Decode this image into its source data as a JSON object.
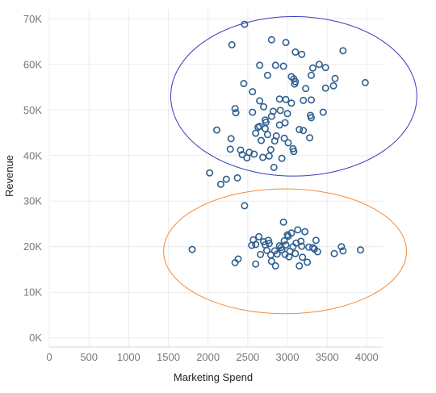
{
  "chart_data": {
    "type": "scatter",
    "xlabel": "Marketing Spend",
    "ylabel": "Revenue",
    "xlim": [
      0,
      4200
    ],
    "ylim": [
      -2000,
      72000
    ],
    "x_ticks": [
      0,
      500,
      1000,
      1500,
      2000,
      2500,
      3000,
      3500,
      4000
    ],
    "y_ticks": [
      0,
      10000,
      20000,
      30000,
      40000,
      50000,
      60000,
      70000
    ],
    "y_tick_labels": [
      "0K",
      "10K",
      "20K",
      "30K",
      "40K",
      "50K",
      "60K",
      "70K"
    ],
    "grid": true,
    "marker_color": "#2f5f8f",
    "ellipses": [
      {
        "cx": 3080,
        "cy": 53000,
        "rx": 1550,
        "ry": 17500,
        "color": "#3a3ac0"
      },
      {
        "cx": 2970,
        "cy": 19000,
        "rx": 1530,
        "ry": 13700,
        "color": "#f28a3a"
      }
    ],
    "series": [
      {
        "values": [
          [
            2460,
            68800
          ],
          [
            2300,
            64300
          ],
          [
            2800,
            65400
          ],
          [
            2980,
            64800
          ],
          [
            3100,
            62700
          ],
          [
            3180,
            62200
          ],
          [
            3700,
            63000
          ],
          [
            3980,
            56000
          ],
          [
            2650,
            59800
          ],
          [
            2850,
            59800
          ],
          [
            2950,
            59600
          ],
          [
            2750,
            57600
          ],
          [
            3050,
            57300
          ],
          [
            3100,
            56200
          ],
          [
            3090,
            55700
          ],
          [
            3080,
            56800
          ],
          [
            3300,
            57600
          ],
          [
            3320,
            59200
          ],
          [
            3400,
            60000
          ],
          [
            3480,
            59300
          ],
          [
            3600,
            56900
          ],
          [
            2450,
            55800
          ],
          [
            2560,
            54000
          ],
          [
            3230,
            54700
          ],
          [
            3480,
            54800
          ],
          [
            3580,
            55300
          ],
          [
            2650,
            52000
          ],
          [
            2900,
            52400
          ],
          [
            2980,
            52300
          ],
          [
            3050,
            51500
          ],
          [
            3200,
            52100
          ],
          [
            3300,
            52200
          ],
          [
            3450,
            49500
          ],
          [
            2340,
            50300
          ],
          [
            2350,
            49400
          ],
          [
            2560,
            49500
          ],
          [
            2700,
            50700
          ],
          [
            2820,
            49700
          ],
          [
            2910,
            49900
          ],
          [
            3000,
            49200
          ],
          [
            2800,
            48600
          ],
          [
            2720,
            47800
          ],
          [
            2730,
            47300
          ],
          [
            3290,
            48800
          ],
          [
            3300,
            48300
          ],
          [
            2650,
            46400
          ],
          [
            2630,
            46200
          ],
          [
            2720,
            45900
          ],
          [
            2900,
            46700
          ],
          [
            2970,
            47200
          ],
          [
            3150,
            45700
          ],
          [
            3200,
            45500
          ],
          [
            2110,
            45600
          ],
          [
            2600,
            44900
          ],
          [
            2750,
            44600
          ],
          [
            2860,
            44300
          ],
          [
            2290,
            43700
          ],
          [
            2670,
            43300
          ],
          [
            2840,
            43200
          ],
          [
            2960,
            43800
          ],
          [
            3010,
            42800
          ],
          [
            3280,
            43900
          ],
          [
            2790,
            41300
          ],
          [
            3070,
            41500
          ],
          [
            3080,
            40900
          ],
          [
            2410,
            41200
          ],
          [
            2280,
            41400
          ],
          [
            2520,
            40700
          ],
          [
            2580,
            40300
          ],
          [
            2430,
            40200
          ],
          [
            2490,
            39500
          ],
          [
            2690,
            39600
          ],
          [
            2770,
            39900
          ],
          [
            2930,
            39400
          ],
          [
            2830,
            37400
          ],
          [
            2020,
            36200
          ],
          [
            2230,
            34800
          ],
          [
            2370,
            35100
          ],
          [
            2160,
            33700
          ],
          [
            2460,
            29000
          ],
          [
            1800,
            19400
          ],
          [
            2340,
            16500
          ],
          [
            2380,
            17300
          ],
          [
            2550,
            20300
          ],
          [
            2570,
            21500
          ],
          [
            2600,
            20500
          ],
          [
            2600,
            16200
          ],
          [
            2640,
            22200
          ],
          [
            2660,
            18300
          ],
          [
            2700,
            21100
          ],
          [
            2720,
            20400
          ],
          [
            2740,
            19200
          ],
          [
            2760,
            21400
          ],
          [
            2770,
            20700
          ],
          [
            2790,
            18200
          ],
          [
            2800,
            16800
          ],
          [
            2840,
            19100
          ],
          [
            2850,
            15800
          ],
          [
            2870,
            18400
          ],
          [
            2900,
            20200
          ],
          [
            2920,
            19800
          ],
          [
            2930,
            19300
          ],
          [
            2950,
            25400
          ],
          [
            2960,
            21300
          ],
          [
            2970,
            18300
          ],
          [
            2980,
            20400
          ],
          [
            3000,
            22600
          ],
          [
            3010,
            22300
          ],
          [
            3020,
            17800
          ],
          [
            3030,
            19000
          ],
          [
            3050,
            23000
          ],
          [
            3070,
            20000
          ],
          [
            3100,
            18500
          ],
          [
            3110,
            20800
          ],
          [
            3130,
            23700
          ],
          [
            3150,
            15800
          ],
          [
            3170,
            21200
          ],
          [
            3180,
            20100
          ],
          [
            3190,
            17700
          ],
          [
            3220,
            23300
          ],
          [
            3250,
            16600
          ],
          [
            3270,
            19900
          ],
          [
            3320,
            19800
          ],
          [
            3340,
            19500
          ],
          [
            3360,
            21400
          ],
          [
            3380,
            18900
          ],
          [
            3590,
            18500
          ],
          [
            3680,
            20000
          ],
          [
            3700,
            19100
          ],
          [
            3920,
            19300
          ]
        ]
      }
    ]
  }
}
